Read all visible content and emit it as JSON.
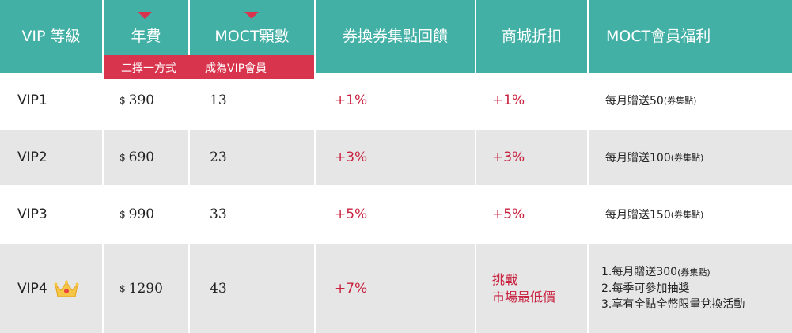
{
  "header": {
    "level": "VIP 等級",
    "fee": "年費",
    "moct": "MOCT顆數",
    "coupon": "券換券集點回饋",
    "mall": "商城折扣",
    "benefit": "MOCT會員福利"
  },
  "pill": {
    "left": "二擇一方式",
    "right": "成為VIP會員"
  },
  "colors": {
    "header_bg": "#43b0a6",
    "accent_red": "#d9344d",
    "row_gray": "#e6e6e6"
  },
  "rows": [
    {
      "level": "VIP1",
      "currency": "$",
      "fee": "390",
      "moct": "13",
      "coupon": "+1%",
      "mall": "+1%",
      "benefit_main": "每月贈送50",
      "benefit_note": "(券集點)"
    },
    {
      "level": "VIP2",
      "currency": "$",
      "fee": "690",
      "moct": "23",
      "coupon": "+3%",
      "mall": "+3%",
      "benefit_main": "每月贈送100",
      "benefit_note": "(券集點)"
    },
    {
      "level": "VIP3",
      "currency": "$",
      "fee": "990",
      "moct": "33",
      "coupon": "+5%",
      "mall": "+5%",
      "benefit_main": "每月贈送150",
      "benefit_note": "(券集點)"
    },
    {
      "level": "VIP4",
      "currency": "$",
      "fee": "1290",
      "moct": "43",
      "coupon": "+7%",
      "mall_line1": "挑戰",
      "mall_line2": "市場最低價",
      "benefit_1_main": "1.每月贈送300",
      "benefit_1_note": "(券集點)",
      "benefit_2": "2.每季可參加抽獎",
      "benefit_3": "3.享有全點全幣限量兌換活動",
      "icon": "crown-icon"
    }
  ]
}
